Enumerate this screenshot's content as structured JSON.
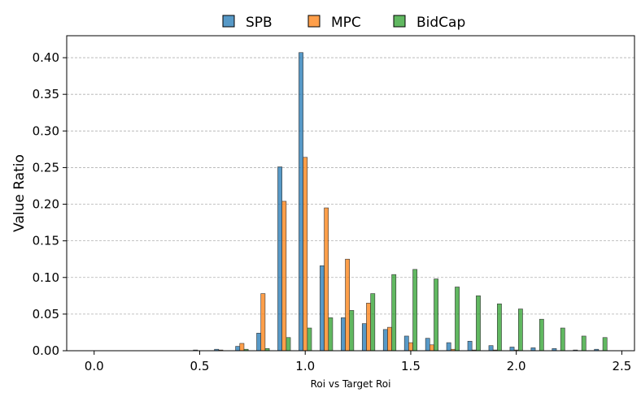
{
  "chart_data": {
    "type": "bar",
    "title": "",
    "xlabel": "Roi vs Target Roi",
    "ylabel": "Value Ratio",
    "xlim": [
      -0.13,
      2.56
    ],
    "ylim": [
      0,
      0.43
    ],
    "xticks": [
      0.0,
      0.5,
      1.0,
      1.5,
      2.0,
      2.5
    ],
    "yticks": [
      0.0,
      0.05,
      0.1,
      0.15,
      0.2,
      0.25,
      0.3,
      0.35,
      0.4,
      0.45
    ],
    "xtick_labels": [
      "0.0",
      "0.5",
      "1.0",
      "1.5",
      "2.0",
      "2.5"
    ],
    "ytick_labels": [
      "0.00",
      "0.05",
      "0.10",
      "0.15",
      "0.20",
      "0.25",
      "0.30",
      "0.35",
      "0.40"
    ],
    "grid": "y-dashed",
    "legend_position": "top-center",
    "bar_width": 0.02,
    "x": [
      0.0,
      0.1,
      0.2,
      0.3,
      0.4,
      0.5,
      0.6,
      0.7,
      0.8,
      0.9,
      1.0,
      1.1,
      1.2,
      1.3,
      1.4,
      1.5,
      1.6,
      1.7,
      1.8,
      1.9,
      2.0,
      2.1,
      2.2,
      2.3,
      2.4
    ],
    "series": [
      {
        "name": "SPB",
        "color": "#1f77b4",
        "offset": -0.02,
        "values": [
          0.0,
          0.0,
          0.0,
          0.0,
          0.0,
          0.001,
          0.002,
          0.006,
          0.024,
          0.251,
          0.407,
          0.116,
          0.045,
          0.037,
          0.029,
          0.02,
          0.017,
          0.011,
          0.013,
          0.007,
          0.005,
          0.004,
          0.003,
          0.001,
          0.002
        ]
      },
      {
        "name": "MPC",
        "color": "#ff7f0e",
        "offset": 0.0,
        "values": [
          0.0,
          0.0,
          0.0,
          0.0,
          0.0,
          0.0,
          0.001,
          0.01,
          0.078,
          0.204,
          0.264,
          0.195,
          0.125,
          0.065,
          0.032,
          0.011,
          0.008,
          0.002,
          0.001,
          0.001,
          0.001,
          0.0,
          0.0,
          0.0,
          0.0
        ]
      },
      {
        "name": "BidCap",
        "color": "#2ca02c",
        "offset": 0.02,
        "values": [
          0.0,
          0.0,
          0.0,
          0.0,
          0.0,
          0.0,
          0.0,
          0.002,
          0.003,
          0.018,
          0.031,
          0.045,
          0.055,
          0.078,
          0.104,
          0.111,
          0.098,
          0.087,
          0.075,
          0.064,
          0.057,
          0.043,
          0.031,
          0.02,
          0.018
        ]
      }
    ]
  }
}
